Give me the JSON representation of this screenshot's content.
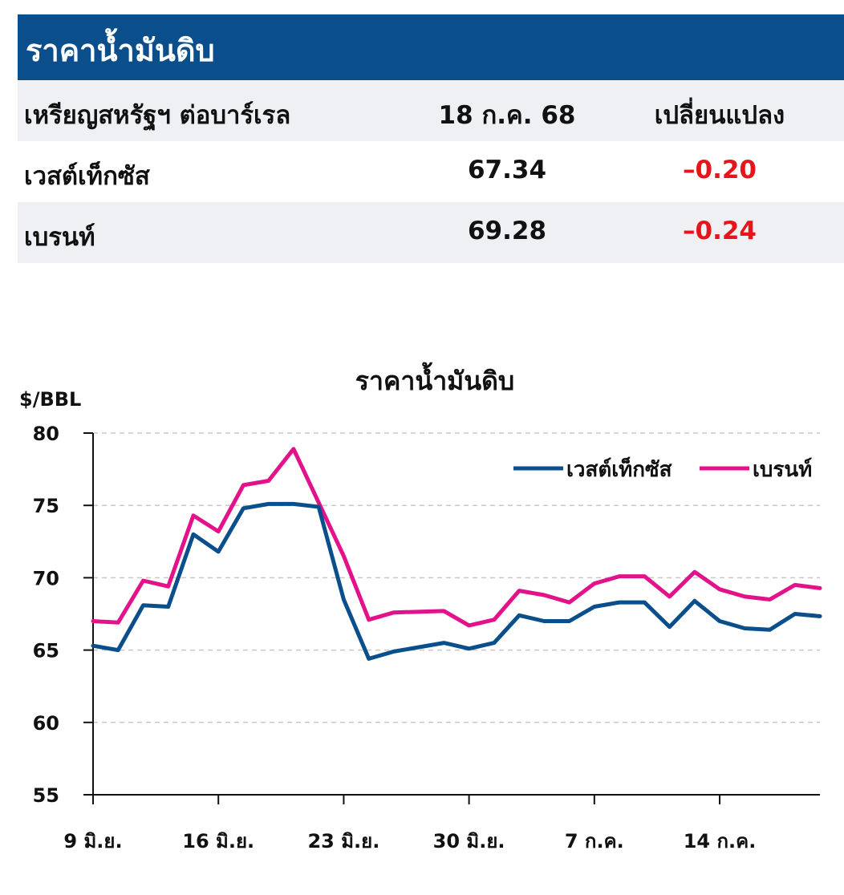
{
  "table": {
    "title": "ราคาน้ำมันดิบ",
    "header": {
      "unit": "เหรียญสหรัฐฯ ต่อบาร์เรล",
      "date": "18 ก.ค. 68",
      "change": "เปลี่ยนแปลง"
    },
    "rows": [
      {
        "name": "เวสต์เท็กซัส",
        "price": "67.34",
        "change": "–0.20"
      },
      {
        "name": "เบรนท์",
        "price": "69.28",
        "change": "–0.24"
      }
    ],
    "negative_color": "#e6141c",
    "header_color": "#0a4f8c"
  },
  "chart_data": {
    "type": "line",
    "title": "ราคาน้ำมันดิบ",
    "ylabel": "$/BBL",
    "ylim": [
      55,
      80
    ],
    "yticks": [
      "55",
      "60",
      "65",
      "70",
      "75",
      "80"
    ],
    "xticks": [
      "9 มิ.ย.",
      "16 มิ.ย.",
      "23 มิ.ย.",
      "30 มิ.ย.",
      "7 ก.ค.",
      "14 ก.ค."
    ],
    "grid": true,
    "legend_position": "top-right",
    "x": [
      "9 มิ.ย.",
      "10 มิ.ย.",
      "11 มิ.ย.",
      "12 มิ.ย.",
      "13 มิ.ย.",
      "16 มิ.ย.",
      "17 มิ.ย.",
      "18 มิ.ย.",
      "19 มิ.ย.",
      "20 มิ.ย.",
      "23 มิ.ย.",
      "24 มิ.ย.",
      "25 มิ.ย.",
      "26 มิ.ย.",
      "27 มิ.ย.",
      "30 มิ.ย.",
      "1 ก.ค.",
      "2 ก.ค.",
      "3 ก.ค.",
      "4 ก.ค.",
      "7 ก.ค.",
      "8 ก.ค.",
      "9 ก.ค.",
      "10 ก.ค.",
      "11 ก.ค.",
      "14 ก.ค.",
      "15 ก.ค.",
      "16 ก.ค.",
      "17 ก.ค.",
      "18 ก.ค."
    ],
    "series": [
      {
        "name": "เวสต์เท็กซัส",
        "color": "#0a4f8c",
        "values": [
          65.3,
          65.0,
          68.1,
          68.0,
          73.0,
          71.8,
          74.8,
          75.1,
          75.1,
          74.9,
          68.5,
          64.4,
          64.9,
          null,
          65.5,
          65.1,
          65.5,
          67.4,
          67.0,
          67.0,
          68.0,
          68.3,
          68.3,
          66.6,
          68.4,
          67.0,
          66.5,
          66.4,
          67.5,
          67.34
        ]
      },
      {
        "name": "เบรนท์",
        "color": "#e3128a",
        "values": [
          67.0,
          66.9,
          69.8,
          69.4,
          74.3,
          73.2,
          76.4,
          76.7,
          78.9,
          null,
          71.5,
          67.1,
          67.6,
          null,
          67.7,
          66.7,
          67.1,
          69.1,
          68.8,
          68.3,
          69.6,
          70.1,
          70.1,
          68.7,
          70.4,
          69.2,
          68.7,
          68.5,
          69.5,
          69.28
        ]
      }
    ]
  }
}
